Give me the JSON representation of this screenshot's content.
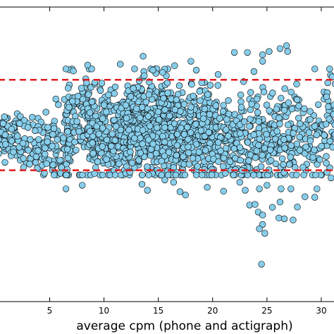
{
  "chart_data": {
    "type": "scatter",
    "title": "",
    "xlabel": "average cpm (phone and actigraph)",
    "ylabel": "",
    "xlim": [
      0.3,
      31.3
    ],
    "ylim": [
      0,
      1
    ],
    "x_ticks": [
      5,
      10,
      15,
      20,
      25,
      30
    ],
    "x_tick_labels": [
      "5",
      "10",
      "15",
      "20",
      "25",
      "30"
    ],
    "grid": false,
    "legend": "none",
    "marker_color": "#87ceeb",
    "marker_edge_color": "#000000",
    "reference_line_color": "#e31a1c",
    "reference_lines_y": [
      0.753,
      0.446
    ],
    "clusters": [
      {
        "x_range": [
          0.3,
          2.0
        ],
        "y_center": 0.565,
        "y_spread": 0.045,
        "count": 60
      },
      {
        "x_range": [
          2.0,
          4.5
        ],
        "y_center": 0.53,
        "y_spread": 0.06,
        "count": 70
      },
      {
        "x_range": [
          4.5,
          7.0
        ],
        "y_center": 0.54,
        "y_spread": 0.08,
        "count": 90
      },
      {
        "x_range": [
          6.5,
          9.0
        ],
        "y_center": 0.61,
        "y_spread": 0.09,
        "count": 110
      },
      {
        "x_range": [
          8.5,
          12.0
        ],
        "y_center": 0.56,
        "y_spread": 0.09,
        "count": 250
      },
      {
        "x_range": [
          12.0,
          16.5
        ],
        "y_center": 0.59,
        "y_spread": 0.1,
        "count": 450
      },
      {
        "x_range": [
          16.5,
          20.5
        ],
        "y_center": 0.57,
        "y_spread": 0.09,
        "count": 280
      },
      {
        "x_range": [
          20.5,
          22.5
        ],
        "y_center": 0.53,
        "y_spread": 0.08,
        "count": 80
      },
      {
        "x_range": [
          22.5,
          26.5
        ],
        "y_center": 0.55,
        "y_spread": 0.1,
        "count": 170
      },
      {
        "x_range": [
          26.5,
          31.3
        ],
        "y_center": 0.57,
        "y_spread": 0.1,
        "count": 160
      }
    ],
    "points": [
      {
        "x": 8.5,
        "y": 0.803
      },
      {
        "x": 11.5,
        "y": 0.806
      },
      {
        "x": 13.6,
        "y": 0.833
      },
      {
        "x": 14.5,
        "y": 0.786
      },
      {
        "x": 15.4,
        "y": 0.778
      },
      {
        "x": 18.0,
        "y": 0.816
      },
      {
        "x": 18.5,
        "y": 0.786
      },
      {
        "x": 22.0,
        "y": 0.846
      },
      {
        "x": 23.2,
        "y": 0.846
      },
      {
        "x": 24.6,
        "y": 0.838
      },
      {
        "x": 25.2,
        "y": 0.849
      },
      {
        "x": 26.2,
        "y": 0.859
      },
      {
        "x": 26.8,
        "y": 0.869
      },
      {
        "x": 26.9,
        "y": 0.849
      },
      {
        "x": 24.6,
        "y": 0.816
      },
      {
        "x": 23.8,
        "y": 0.781
      },
      {
        "x": 20.5,
        "y": 0.771
      },
      {
        "x": 31.0,
        "y": 0.763
      },
      {
        "x": 30.6,
        "y": 0.743
      },
      {
        "x": 16.5,
        "y": 0.801
      },
      {
        "x": 6.5,
        "y": 0.383
      },
      {
        "x": 8.0,
        "y": 0.395
      },
      {
        "x": 13.5,
        "y": 0.398
      },
      {
        "x": 14.0,
        "y": 0.378
      },
      {
        "x": 15.6,
        "y": 0.413
      },
      {
        "x": 16.4,
        "y": 0.405
      },
      {
        "x": 17.0,
        "y": 0.373
      },
      {
        "x": 17.5,
        "y": 0.362
      },
      {
        "x": 19.5,
        "y": 0.388
      },
      {
        "x": 22.5,
        "y": 0.405
      },
      {
        "x": 23.0,
        "y": 0.378
      },
      {
        "x": 24.3,
        "y": 0.383
      },
      {
        "x": 25.0,
        "y": 0.395
      },
      {
        "x": 26.3,
        "y": 0.383
      },
      {
        "x": 27.2,
        "y": 0.383
      },
      {
        "x": 28.5,
        "y": 0.356
      },
      {
        "x": 29.6,
        "y": 0.383
      },
      {
        "x": 30.9,
        "y": 0.42
      },
      {
        "x": 23.4,
        "y": 0.328
      },
      {
        "x": 23.9,
        "y": 0.33
      },
      {
        "x": 26.2,
        "y": 0.338
      },
      {
        "x": 25.5,
        "y": 0.32
      },
      {
        "x": 27.8,
        "y": 0.321
      },
      {
        "x": 24.2,
        "y": 0.304
      },
      {
        "x": 24.6,
        "y": 0.294
      },
      {
        "x": 26.1,
        "y": 0.284
      },
      {
        "x": 26.6,
        "y": 0.281
      },
      {
        "x": 27.4,
        "y": 0.277
      },
      {
        "x": 24.6,
        "y": 0.262
      },
      {
        "x": 24.3,
        "y": 0.247
      },
      {
        "x": 24.8,
        "y": 0.232
      },
      {
        "x": 24.5,
        "y": 0.127
      },
      {
        "x": 21.0,
        "y": 0.375
      },
      {
        "x": 29.4,
        "y": 0.354
      }
    ]
  }
}
